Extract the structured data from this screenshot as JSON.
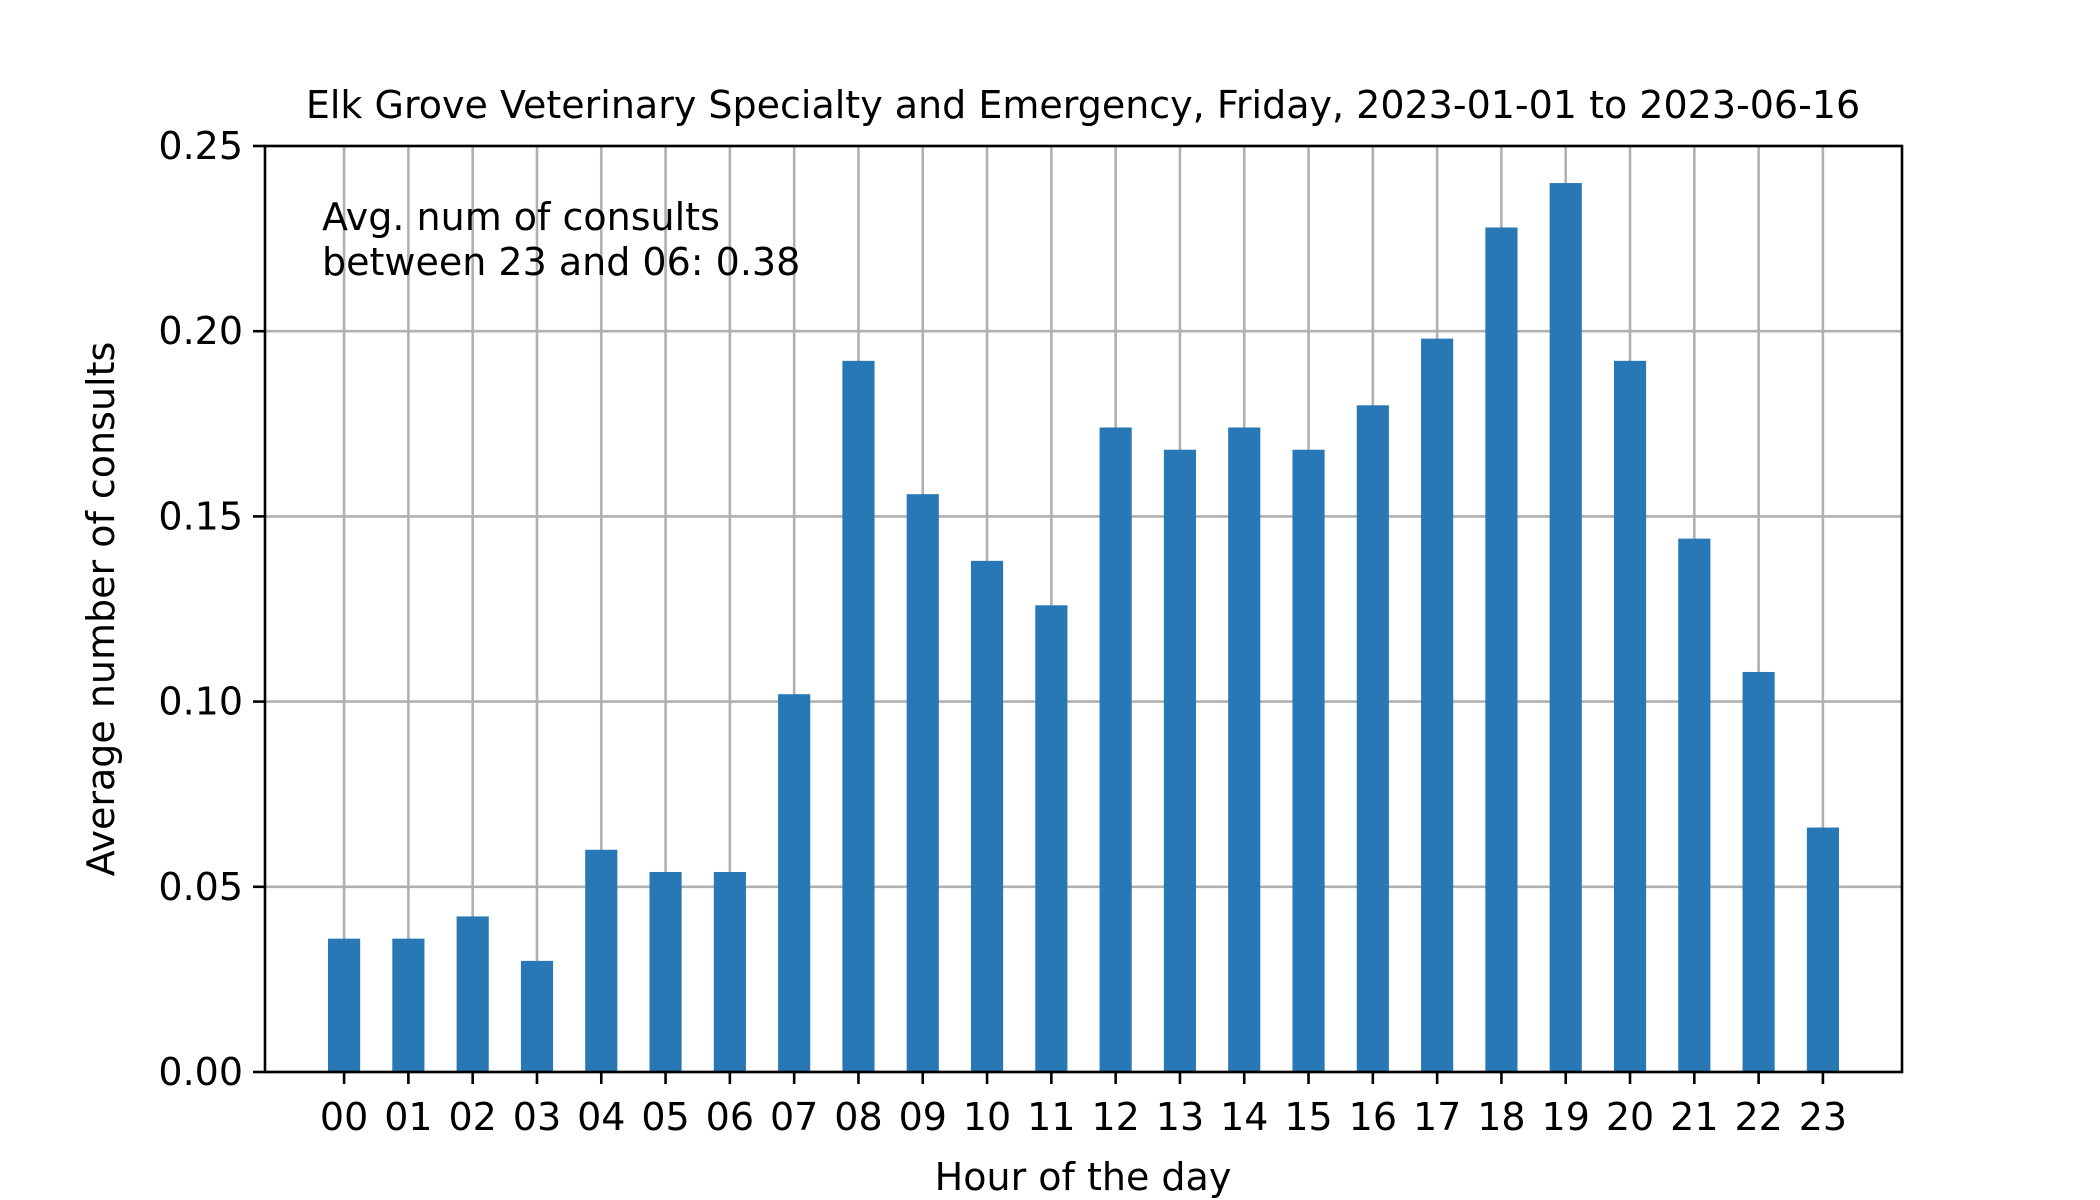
{
  "chart_data": {
    "type": "bar",
    "title": "Elk Grove Veterinary Specialty and Emergency, Friday, 2023-01-01 to 2023-06-16",
    "xlabel": "Hour of the day",
    "ylabel": "Average number of consults",
    "categories": [
      "00",
      "01",
      "02",
      "03",
      "04",
      "05",
      "06",
      "07",
      "08",
      "09",
      "10",
      "11",
      "12",
      "13",
      "14",
      "15",
      "16",
      "17",
      "18",
      "19",
      "20",
      "21",
      "22",
      "23"
    ],
    "values": [
      0.036,
      0.036,
      0.042,
      0.03,
      0.06,
      0.054,
      0.054,
      0.102,
      0.192,
      0.156,
      0.138,
      0.126,
      0.174,
      0.168,
      0.174,
      0.168,
      0.18,
      0.198,
      0.228,
      0.24,
      0.192,
      0.144,
      0.108,
      0.066
    ],
    "ylim": [
      0,
      0.25
    ],
    "yticks": [
      "0.00",
      "0.05",
      "0.10",
      "0.15",
      "0.20",
      "0.25"
    ],
    "grid": true,
    "bar_color": "#2878b5",
    "annotation": {
      "line1": "Avg. num of consults",
      "line2": "between 23 and 06: 0.38"
    }
  }
}
